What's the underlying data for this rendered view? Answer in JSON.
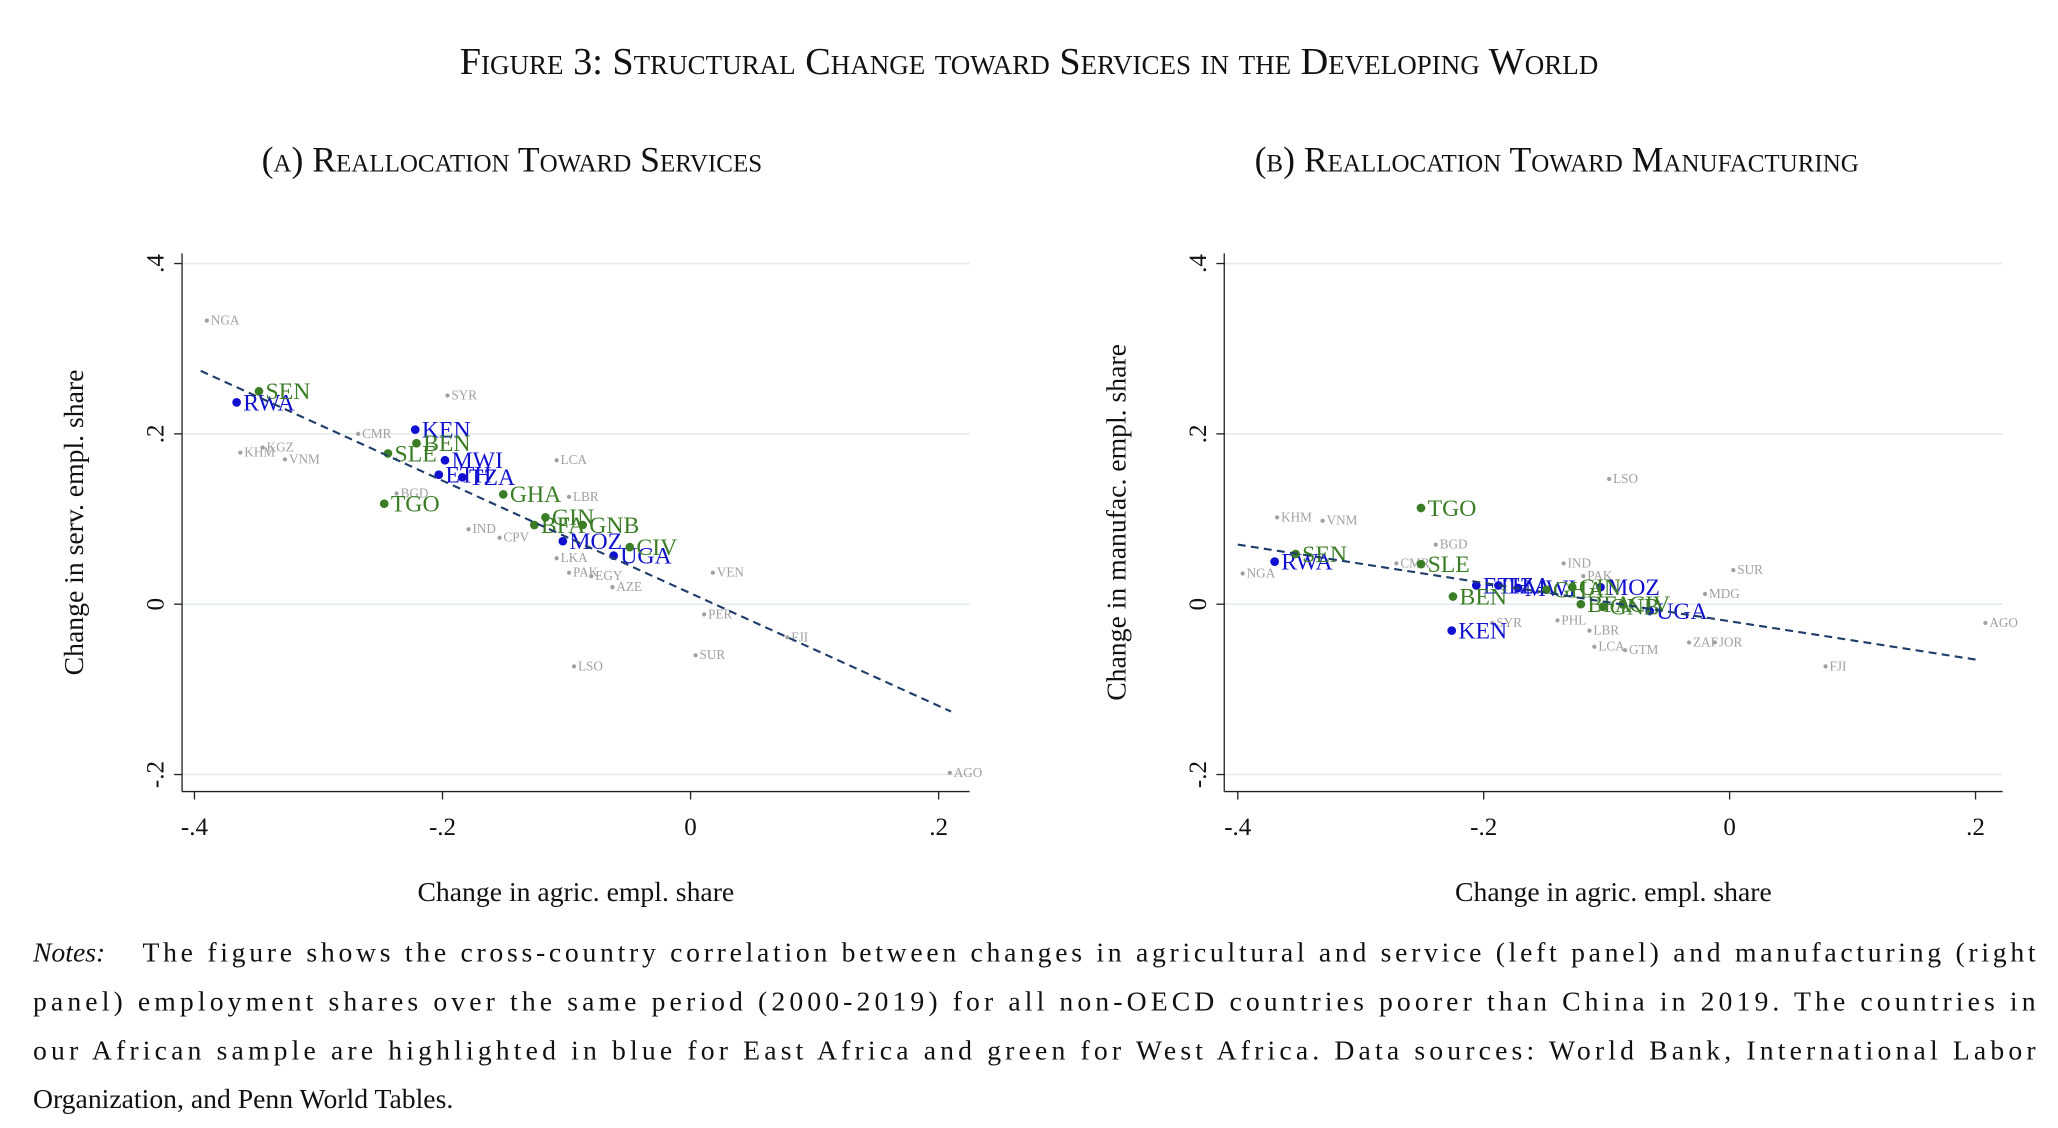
{
  "figure_title": "Figure 3: Structural Change toward Services in the Developing World",
  "chart_data": [
    {
      "type": "scatter",
      "title": "(a) Reallocation Toward Services",
      "x_label": "Change in agric. empl. share",
      "y_label": "Change in serv. empl. share",
      "xlim": [
        -0.41,
        0.225
      ],
      "ylim": [
        -0.22,
        0.412
      ],
      "xticks": [
        {
          "value": -0.4,
          "label": "-.4"
        },
        {
          "value": -0.2,
          "label": "-.2"
        },
        0,
        {
          "value": 0.2,
          "label": ".2"
        }
      ],
      "yticks": [
        {
          "value": -0.2,
          "label": "-.2"
        },
        0,
        {
          "value": 0.2,
          "label": ".2"
        },
        {
          "value": 0.4,
          "label": ".4"
        }
      ],
      "grid": true,
      "series": [
        {
          "color": "#a0a0a0",
          "x": [
            -0.39,
            -0.196,
            -0.268,
            -0.345,
            -0.363,
            -0.327,
            -0.108,
            -0.237,
            -0.179,
            -0.098,
            -0.154,
            -0.108,
            -0.098,
            -0.08,
            -0.063,
            0.018,
            0.011,
            -0.094,
            0.004,
            0.078,
            0.209
          ],
          "values": [
            0.333,
            0.245,
            0.2,
            0.184,
            0.178,
            0.17,
            0.169,
            0.13,
            0.088,
            0.126,
            0.078,
            0.054,
            0.037,
            0.033,
            0.02,
            0.037,
            -0.012,
            -0.073,
            -0.06,
            -0.039,
            -0.198
          ],
          "labels": [
            "NGA",
            "SYR",
            "CMR",
            "KGZ",
            "KHM",
            "VNM",
            "LCA",
            "BGD",
            "IND",
            "LBR",
            "CPV",
            "LKA",
            "PAK",
            "EGY",
            "AZE",
            "VEN",
            "PER",
            "LSO",
            "SUR",
            "FJI",
            "AGO"
          ]
        },
        {
          "color": "#1010d0",
          "x": [
            -0.366,
            -0.222,
            -0.198,
            -0.203,
            -0.184,
            -0.103,
            -0.062
          ],
          "values": [
            0.237,
            0.205,
            0.169,
            0.152,
            0.149,
            0.074,
            0.057
          ],
          "labels": [
            "RWA",
            "KEN",
            "MWI",
            "ETH",
            "TZA",
            "MOZ",
            "UGA"
          ]
        },
        {
          "color": "#3a7d25",
          "x": [
            -0.348,
            -0.221,
            -0.244,
            -0.247,
            -0.151,
            -0.117,
            -0.126,
            -0.087,
            -0.049
          ],
          "values": [
            0.25,
            0.189,
            0.177,
            0.118,
            0.129,
            0.102,
            0.093,
            0.093,
            0.067
          ],
          "labels": [
            "SEN",
            "BEN",
            "SLE",
            "TGO",
            "GHA",
            "GIN",
            "BFA",
            "GNB",
            "CIV"
          ]
        }
      ],
      "fit": {
        "color": "#1f3d6b",
        "x": [
          -0.395,
          0.21
        ],
        "values": [
          0.274,
          -0.126
        ]
      }
    },
    {
      "type": "scatter",
      "title": "(b) Reallocation Toward Manufacturing",
      "x_label": "Change in agric. empl. share",
      "y_label": "Change in manufac. empl. share",
      "xlim": [
        -0.411,
        0.222
      ],
      "ylim": [
        -0.22,
        0.412
      ],
      "xticks": [
        {
          "value": -0.4,
          "label": "-.4"
        },
        {
          "value": -0.2,
          "label": "-.2"
        },
        0,
        {
          "value": 0.2,
          "label": ".2"
        }
      ],
      "yticks": [
        {
          "value": -0.2,
          "label": "-.2"
        },
        0,
        {
          "value": 0.2,
          "label": ".2"
        },
        {
          "value": 0.4,
          "label": ".4"
        }
      ],
      "grid": true,
      "series": [
        {
          "color": "#a0a0a0",
          "x": [
            -0.098,
            -0.368,
            -0.331,
            -0.396,
            -0.239,
            -0.271,
            0.003,
            -0.02,
            -0.119,
            -0.135,
            -0.114,
            -0.11,
            -0.085,
            -0.012,
            -0.033,
            0.078,
            0.208,
            -0.14,
            -0.193
          ],
          "values": [
            0.147,
            0.102,
            0.098,
            0.036,
            0.07,
            0.048,
            0.04,
            0.012,
            0.033,
            0.048,
            -0.031,
            -0.05,
            -0.054,
            -0.045,
            -0.045,
            -0.073,
            -0.022,
            -0.019,
            -0.022
          ],
          "labels": [
            "LSO",
            "KHM",
            "VNM",
            "NGA",
            "BGD",
            "CMR",
            "SUR",
            "MDG",
            "PAK",
            "IND",
            "LBR",
            "LCA",
            "GTM",
            "JOR",
            "ZAF",
            "FJI",
            "AGO",
            "PHL",
            "SYR"
          ]
        },
        {
          "color": "#1010d0",
          "x": [
            -0.37,
            -0.226,
            -0.105,
            -0.065,
            -0.206,
            -0.188,
            -0.172
          ],
          "values": [
            0.05,
            -0.031,
            0.02,
            -0.008,
            0.022,
            0.022,
            0.019
          ],
          "labels": [
            "RWA",
            "KEN",
            "MOZ",
            "UGA",
            "ETH",
            "TZA",
            "MWI"
          ]
        },
        {
          "color": "#3a7d25",
          "x": [
            -0.251,
            -0.353,
            -0.251,
            -0.225,
            -0.149,
            -0.128,
            -0.087,
            -0.103,
            -0.121
          ],
          "values": [
            0.113,
            0.059,
            0.047,
            0.009,
            0.017,
            0.02,
            0,
            -0.003,
            0
          ],
          "labels": [
            "TGO",
            "SEN",
            "SLE",
            "BEN",
            "GHA",
            "GIN",
            "CIV",
            "GNB",
            "BFA"
          ]
        }
      ],
      "fit": {
        "color": "#1f3d6b",
        "x": [
          -0.4,
          0.2
        ],
        "values": [
          0.07,
          -0.065
        ]
      }
    }
  ],
  "notes_label": "Notes:",
  "notes": [
    "The figure shows the cross-country correlation between changes in agricultural and service (left panel) and manufacturing (right",
    "panel) employment shares over the same period (2000-2019) for all non-OECD countries poorer than China in 2019. The countries in",
    "our African sample are highlighted in blue for East Africa and green for West Africa. Data sources: World Bank, International Labor",
    "Organization, and Penn World Tables."
  ]
}
